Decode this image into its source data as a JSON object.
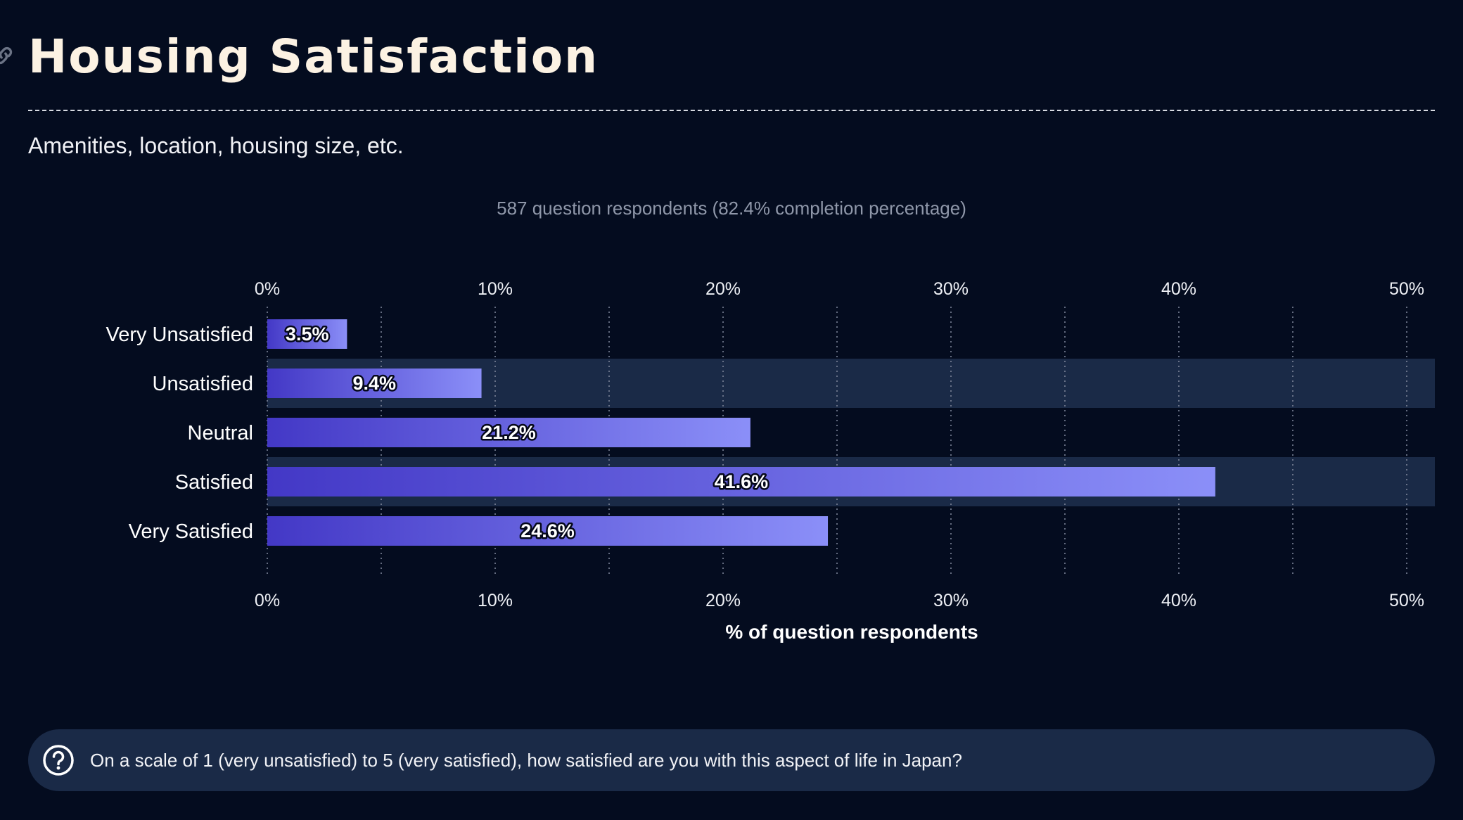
{
  "header": {
    "title": "Housing Satisfaction",
    "subtitle": "Amenities, location, housing size, etc.",
    "link_icon": "link-icon"
  },
  "respondents_text": "587 question respondents (82.4% completion percentage)",
  "question": {
    "icon": "question-circle-icon",
    "text": "On a scale of 1 (very unsatisfied) to 5 (very satisfied), how satisfied are you with this aspect of life in Japan?"
  },
  "colors": {
    "background": "#040c1f",
    "band": "#1a2a47",
    "bar_start": "#4338c6",
    "bar_end": "#8b8ff8",
    "title": "#fcf2e3"
  },
  "chart_data": {
    "type": "bar",
    "orientation": "horizontal",
    "categories": [
      "Very Unsatisfied",
      "Unsatisfied",
      "Neutral",
      "Satisfied",
      "Very Satisfied"
    ],
    "values": [
      3.5,
      9.4,
      21.2,
      41.6,
      24.6
    ],
    "value_labels": [
      "3.5%",
      "9.4%",
      "21.2%",
      "41.6%",
      "24.6%"
    ],
    "xlabel": "% of question respondents",
    "xlim": [
      0,
      51.3
    ],
    "xticks": [
      0,
      10,
      20,
      30,
      40,
      50
    ],
    "xtick_labels": [
      "0%",
      "10%",
      "20%",
      "30%",
      "40%",
      "50%"
    ],
    "minor_grid_step": 5,
    "grid": true,
    "axis_labels_top_and_bottom": true,
    "alternating_row_bands": true
  }
}
